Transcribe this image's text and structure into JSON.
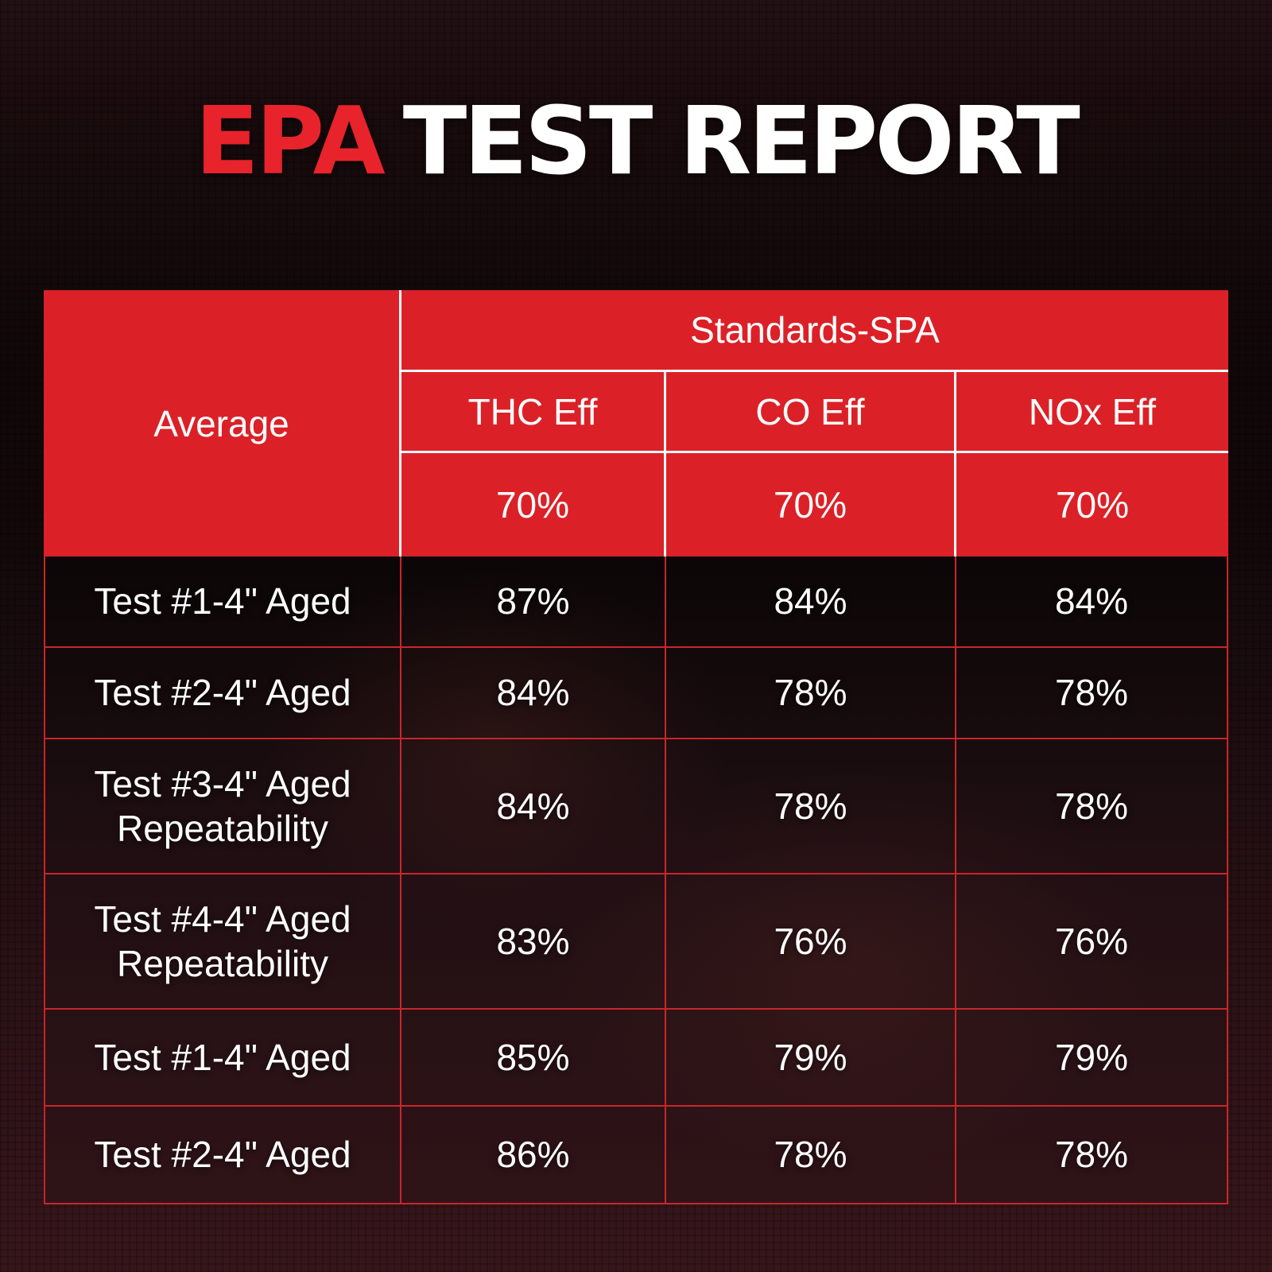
{
  "title": {
    "highlight": "EPA",
    "rest": "TEST REPORT"
  },
  "colors": {
    "header_red": "#db2127",
    "title_red": "#e8232b",
    "grid_red": "#c9262b",
    "text_white": "#ffffff",
    "background_dark": "#140a0b",
    "background_maroon": "#37161b"
  },
  "chart_data": {
    "type": "table",
    "title": "EPA TEST REPORT",
    "row_header": "Average",
    "group_header": "Standards-SPA",
    "columns": [
      "THC Eff",
      "CO Eff",
      "NOx Eff"
    ],
    "standards": [
      "70%",
      "70%",
      "70%"
    ],
    "rows": [
      {
        "label": "Test #1-4\" Aged",
        "values": [
          "87%",
          "84%",
          "84%"
        ]
      },
      {
        "label": "Test #2-4\" Aged",
        "values": [
          "84%",
          "78%",
          "78%"
        ]
      },
      {
        "label": "Test #3-4\" Aged Repeatability",
        "values": [
          "84%",
          "78%",
          "78%"
        ]
      },
      {
        "label": "Test #4-4\" Aged Repeatability",
        "values": [
          "83%",
          "76%",
          "76%"
        ]
      },
      {
        "label": "Test #1-4\" Aged",
        "values": [
          "85%",
          "79%",
          "79%"
        ]
      },
      {
        "label": "Test #2-4\" Aged",
        "values": [
          "86%",
          "78%",
          "78%"
        ]
      }
    ]
  }
}
